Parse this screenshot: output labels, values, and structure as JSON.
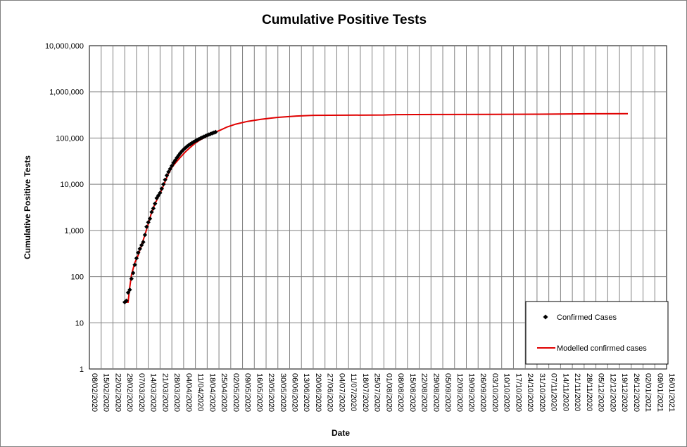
{
  "chart_data": {
    "type": "scatter",
    "title": "Cumulative Positive Tests",
    "xlabel": "Date",
    "ylabel": "Cumulative Positive Tests",
    "y_scale": "log",
    "ylim": [
      1,
      10000000
    ],
    "y_ticks": [
      "1",
      "10",
      "100",
      "1,000",
      "10,000",
      "100,000",
      "1,000,000",
      "10,000,000"
    ],
    "xlim": [
      "2020-02-08",
      "2021-01-16"
    ],
    "x_ticks": [
      "08/02/2020",
      "15/02/2020",
      "22/02/2020",
      "29/02/2020",
      "07/03/2020",
      "14/03/2020",
      "21/03/2020",
      "28/03/2020",
      "04/04/2020",
      "11/04/2020",
      "18/04/2020",
      "25/04/2020",
      "02/05/2020",
      "09/05/2020",
      "16/05/2020",
      "23/05/2020",
      "30/05/2020",
      "06/06/2020",
      "13/06/2020",
      "20/06/2020",
      "27/06/2020",
      "04/07/2020",
      "11/07/2020",
      "18/07/2020",
      "25/07/2020",
      "01/08/2020",
      "08/08/2020",
      "15/08/2020",
      "22/08/2020",
      "29/08/2020",
      "05/09/2020",
      "12/09/2020",
      "19/09/2020",
      "26/09/2020",
      "03/10/2020",
      "10/10/2020",
      "17/10/2020",
      "24/10/2020",
      "31/10/2020",
      "07/11/2020",
      "14/11/2020",
      "21/11/2020",
      "28/11/2020",
      "05/12/2020",
      "12/12/2020",
      "19/12/2020",
      "26/12/2020",
      "02/01/2021",
      "09/01/2021",
      "16/01/2021"
    ],
    "grid": true,
    "legend_position": "bottom-right",
    "series": [
      {
        "name": "Confirmed Cases",
        "kind": "markers",
        "marker": "diamond",
        "color": "#000000",
        "x": [
          "2020-02-29",
          "2020-03-01",
          "2020-03-02",
          "2020-03-03",
          "2020-03-04",
          "2020-03-05",
          "2020-03-06",
          "2020-03-07",
          "2020-03-08",
          "2020-03-09",
          "2020-03-10",
          "2020-03-11",
          "2020-03-12",
          "2020-03-13",
          "2020-03-14",
          "2020-03-15",
          "2020-03-16",
          "2020-03-17",
          "2020-03-18",
          "2020-03-19",
          "2020-03-20",
          "2020-03-21",
          "2020-03-22",
          "2020-03-23",
          "2020-03-24",
          "2020-03-25",
          "2020-03-26",
          "2020-03-27",
          "2020-03-28",
          "2020-03-29",
          "2020-03-30",
          "2020-03-31",
          "2020-04-01",
          "2020-04-02",
          "2020-04-03",
          "2020-04-04",
          "2020-04-05",
          "2020-04-06",
          "2020-04-07",
          "2020-04-08",
          "2020-04-09",
          "2020-04-10",
          "2020-04-11",
          "2020-04-12",
          "2020-04-13",
          "2020-04-14",
          "2020-04-15",
          "2020-04-16",
          "2020-04-17",
          "2020-04-18",
          "2020-04-19",
          "2020-04-20",
          "2020-04-21",
          "2020-04-22",
          "2020-04-23"
        ],
        "y": [
          28,
          30,
          45,
          52,
          90,
          120,
          180,
          250,
          330,
          400,
          480,
          560,
          800,
          1200,
          1500,
          1800,
          2500,
          3000,
          3800,
          5000,
          5700,
          6500,
          8000,
          10000,
          12500,
          15500,
          18500,
          21500,
          25000,
          29000,
          33000,
          37500,
          42000,
          47000,
          52000,
          56500,
          61000,
          65500,
          70000,
          74000,
          78500,
          82500,
          86500,
          90500,
          94500,
          98500,
          102500,
          106500,
          111000,
          115000,
          119000,
          123000,
          127000,
          131000,
          135000
        ]
      },
      {
        "name": "Modelled confirmed cases",
        "kind": "line",
        "color": "#e00000",
        "x": [
          "2020-02-29",
          "2020-03-02",
          "2020-03-03",
          "2020-03-04",
          "2020-03-06",
          "2020-03-08",
          "2020-03-10",
          "2020-03-12",
          "2020-03-14",
          "2020-03-16",
          "2020-03-18",
          "2020-03-20",
          "2020-03-22",
          "2020-03-24",
          "2020-03-26",
          "2020-03-28",
          "2020-03-30",
          "2020-04-02",
          "2020-04-05",
          "2020-04-08",
          "2020-04-11",
          "2020-04-14",
          "2020-04-17",
          "2020-04-20",
          "2020-04-23",
          "2020-04-26",
          "2020-04-30",
          "2020-05-05",
          "2020-05-12",
          "2020-05-20",
          "2020-05-30",
          "2020-06-10",
          "2020-06-20",
          "2020-07-10",
          "2020-08-01",
          "2020-08-08",
          "2020-09-01",
          "2020-10-01",
          "2020-11-01",
          "2020-11-20",
          "2020-12-01",
          "2020-12-24"
        ],
        "y": [
          28,
          28,
          60,
          110,
          200,
          290,
          480,
          800,
          1400,
          2500,
          3800,
          5300,
          7600,
          11500,
          17000,
          23000,
          28500,
          38000,
          50000,
          63000,
          78000,
          92000,
          105000,
          120000,
          135000,
          150000,
          175000,
          200000,
          230000,
          255000,
          280000,
          300000,
          310000,
          313000,
          316000,
          322000,
          324000,
          326000,
          328000,
          333000,
          335000,
          336000
        ]
      }
    ]
  }
}
